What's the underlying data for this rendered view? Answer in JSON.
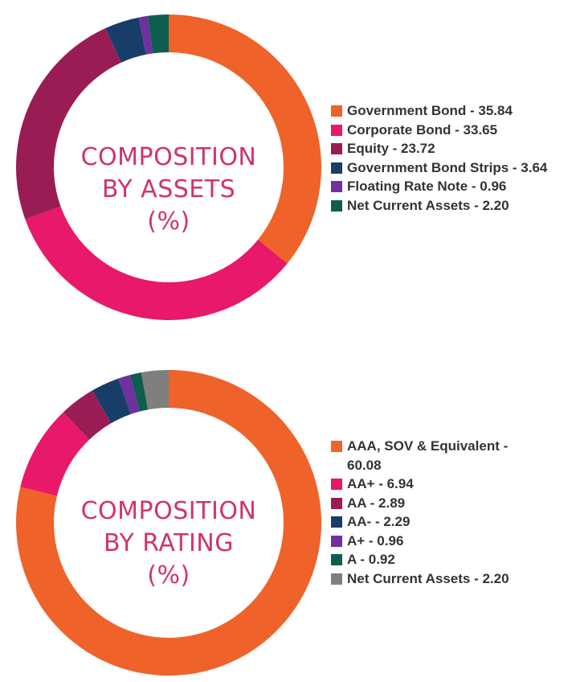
{
  "chart_data": [
    {
      "type": "pie",
      "title_lines": [
        "COMPOSITION",
        "BY ASSETS",
        "(%)"
      ],
      "categories": [
        "Government Bond",
        "Corporate Bond",
        "Equity",
        "Government Bond Strips",
        "Floating Rate Note",
        "Net Current Assets"
      ],
      "values": [
        35.84,
        33.65,
        23.72,
        3.64,
        0.96,
        2.2
      ],
      "legend_labels": [
        "Government Bond - 35.84",
        "Corporate Bond - 33.65",
        "Equity - 23.72",
        "Government Bond Strips - 3.64",
        "Floating Rate Note - 0.96",
        "Net Current Assets - 2.20"
      ],
      "colors": [
        "#ef622a",
        "#e8186a",
        "#9a1c54",
        "#183d68",
        "#7030a0",
        "#0e5e50"
      ],
      "legend_placement": "right",
      "donut": true
    },
    {
      "type": "pie",
      "title_lines": [
        "COMPOSITION",
        "BY RATING",
        "(%)"
      ],
      "categories": [
        "AAA, SOV & Equivalent",
        "AA+",
        "AA",
        "AA-",
        "A+",
        "A",
        "Net Current Assets"
      ],
      "values": [
        60.08,
        6.94,
        2.89,
        2.29,
        0.96,
        0.92,
        2.2
      ],
      "legend_labels": [
        "AAA, SOV & Equivalent - 60.08",
        "AA+ - 6.94",
        "AA - 2.89",
        "AA- - 2.29",
        "A+ - 0.96",
        "A - 0.92",
        "Net Current Assets - 2.20"
      ],
      "colors": [
        "#ef622a",
        "#e8186a",
        "#9a1c54",
        "#183d68",
        "#7030a0",
        "#0e5e50",
        "#7f7f7f"
      ],
      "legend_placement": "right",
      "donut": true
    }
  ]
}
